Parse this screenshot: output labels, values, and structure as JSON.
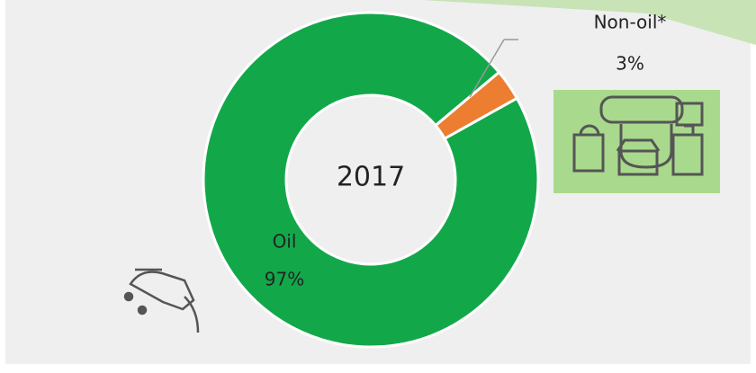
{
  "chart_data": {
    "type": "donut",
    "center_label": "2017",
    "categories": [
      "Oil",
      "Non-oil*"
    ],
    "values": [
      97,
      3
    ],
    "value_labels": [
      "97%",
      "3%"
    ],
    "colors": [
      "#12a84a",
      "#ed7d31"
    ]
  }
}
